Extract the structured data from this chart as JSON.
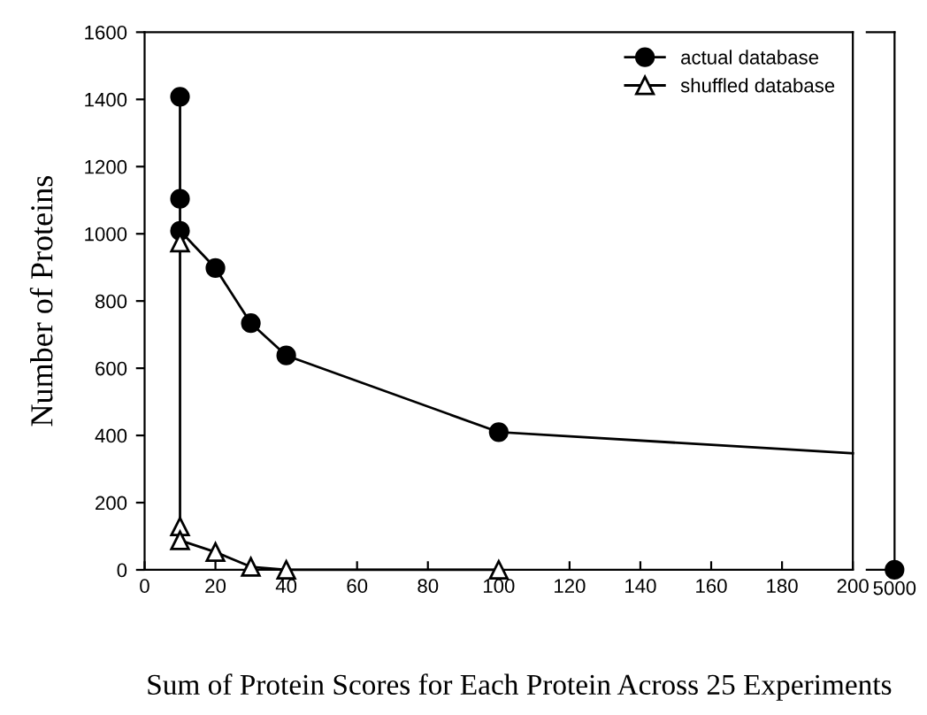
{
  "chart_data": [
    {
      "type": "line",
      "xlabel": "Sum of Protein Scores for Each Protein Across 25 Experiments",
      "ylabel": "Number of Proteins",
      "xlim": [
        0,
        200
      ],
      "xticks": [
        0,
        20,
        40,
        60,
        80,
        100,
        120,
        140,
        160,
        180,
        200
      ],
      "ylim": [
        0,
        1600
      ],
      "yticks": [
        0,
        200,
        400,
        600,
        800,
        1000,
        1200,
        1400,
        1600
      ],
      "grid": false,
      "legend": "top right",
      "series": [
        {
          "name": "actual database",
          "color": "#000000",
          "marker": "circle",
          "x": [
            10,
            10,
            10,
            20,
            30,
            40,
            100
          ],
          "values": [
            1408,
            1104,
            1009,
            898,
            734,
            638,
            410
          ]
        },
        {
          "name": "shuffled database",
          "color": "#ffffff",
          "marker": "triangle",
          "x": [
            10,
            10,
            10,
            20,
            30,
            40,
            100
          ],
          "values": [
            974,
            129,
            88,
            53,
            9,
            0,
            0
          ]
        },
        {
          "color": "#000000",
          "marker": "none",
          "x": [
            100,
            200
          ],
          "values": [
            410,
            347
          ]
        }
      ]
    },
    {
      "type": "other",
      "annotations": [
        "5000"
      ]
    }
  ]
}
